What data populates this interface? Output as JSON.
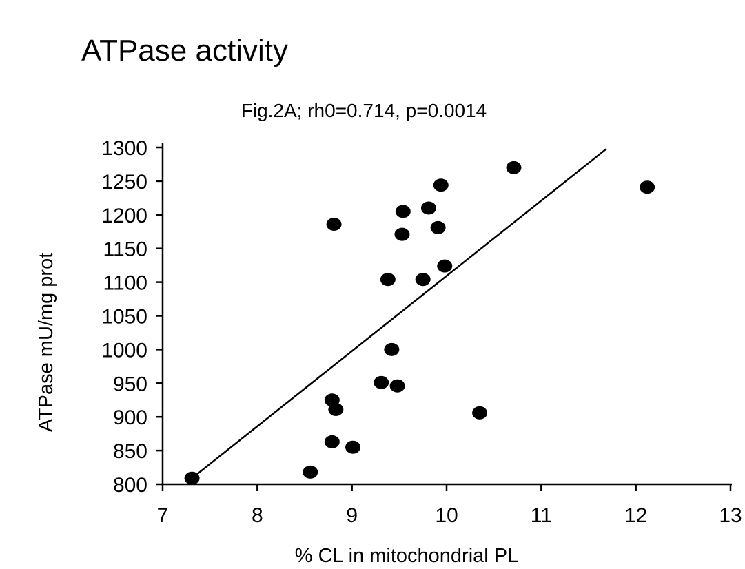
{
  "chart_data": {
    "type": "scatter",
    "title": "ATPase activity",
    "subtitle": "Fig.2A; rh0=0.714, p=0.0014",
    "x_label": "% CL in mitochondrial PL",
    "y_label": "ATPase mU/mg prot",
    "color": "#000000",
    "x": [
      7.31,
      8.56,
      8.79,
      8.83,
      8.79,
      9.01,
      8.81,
      9.31,
      9.48,
      9.42,
      9.38,
      9.53,
      9.54,
      9.75,
      9.81,
      9.91,
      9.94,
      9.98,
      10.35,
      10.71,
      12.12
    ],
    "values": [
      809,
      818,
      925,
      911,
      863,
      855,
      1186,
      951,
      946,
      1000,
      1104,
      1171,
      1205,
      1104,
      1210,
      1181,
      1244,
      1124,
      906,
      1270,
      1241
    ],
    "fit_line": {
      "x": [
        7.31,
        11.69
      ],
      "y": [
        809,
        1298
      ]
    },
    "xlim": [
      7,
      13
    ],
    "ylim": [
      800,
      1300
    ],
    "xticks": [
      7,
      8,
      9,
      10,
      11,
      12,
      13
    ],
    "yticks": [
      800,
      850,
      900,
      950,
      1000,
      1050,
      1100,
      1150,
      1200,
      1250,
      1300
    ]
  }
}
